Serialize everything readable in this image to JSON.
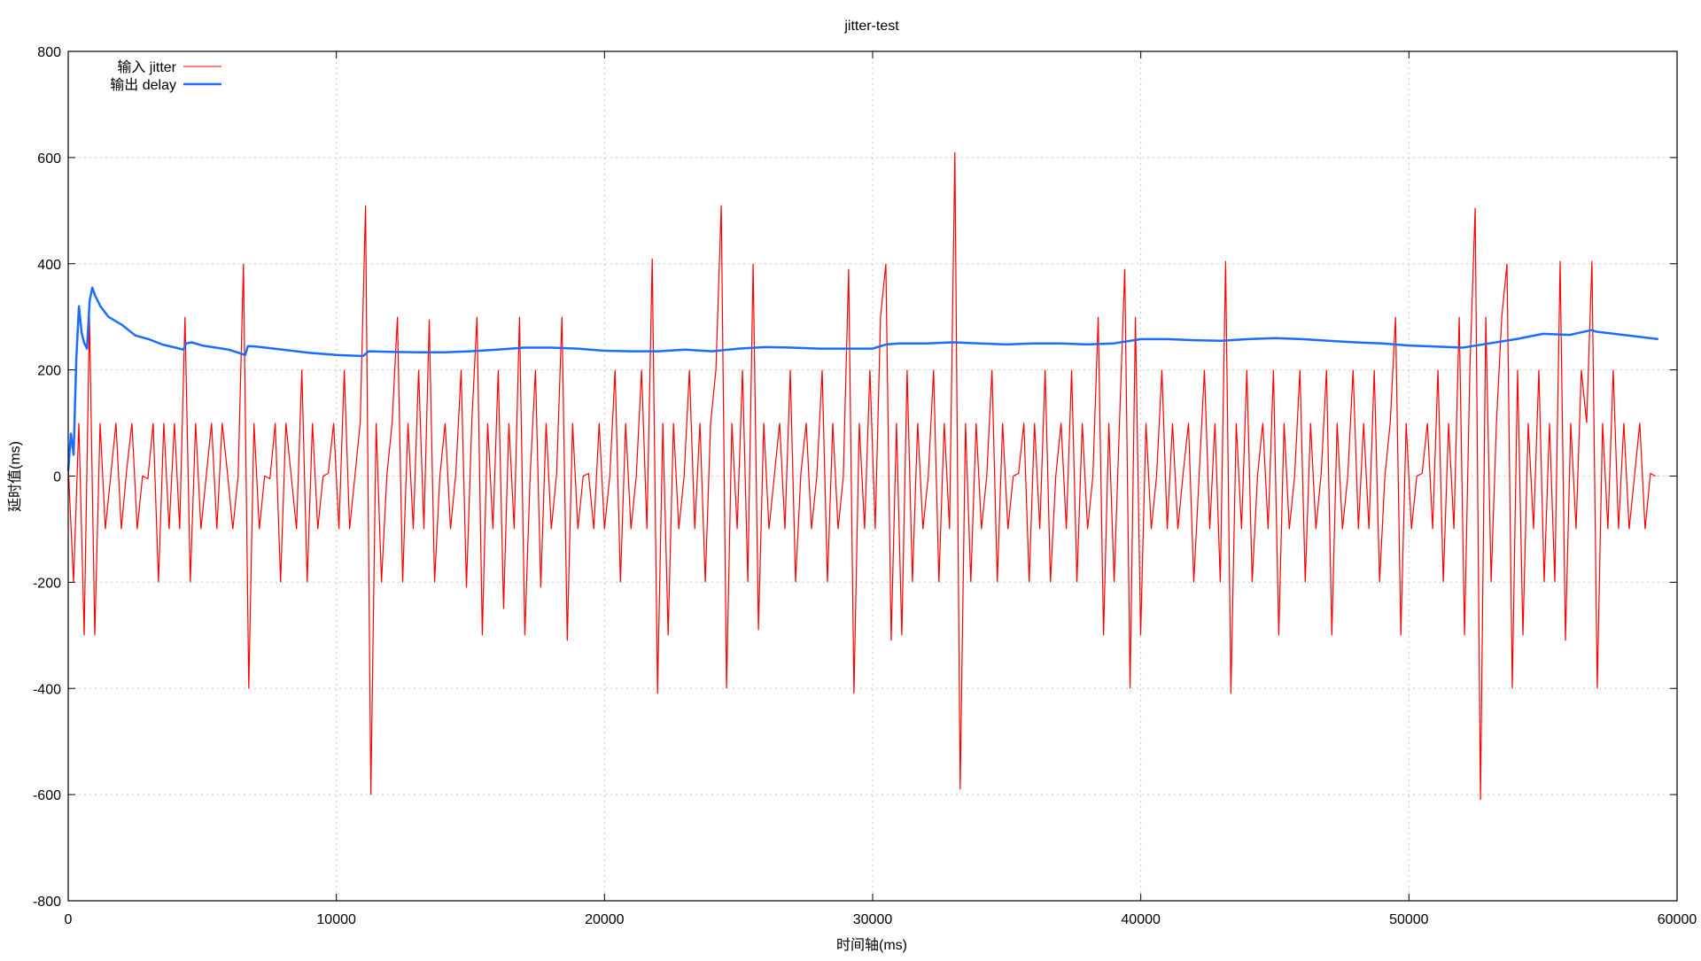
{
  "chart_data": {
    "type": "line",
    "title": "jitter-test",
    "xlabel": "时间轴(ms)",
    "ylabel": "延时值(ms)",
    "xlim": [
      0,
      60000
    ],
    "ylim": [
      -800,
      800
    ],
    "grid": true,
    "legend_position": "top-left",
    "x_ticks": [
      "0",
      "10000",
      "20000",
      "30000",
      "40000",
      "50000",
      "60000"
    ],
    "y_ticks": [
      "-800",
      "-600",
      "-400",
      "-200",
      "0",
      "200",
      "400",
      "600",
      "800"
    ],
    "series": [
      {
        "name": "输入 jitter",
        "color": "#ff0000",
        "x_step_ms": 198,
        "values": [
          20,
          -200,
          100,
          -300,
          300,
          -300,
          100,
          -100,
          0,
          100,
          -100,
          10,
          100,
          -100,
          0,
          -5,
          100,
          -200,
          100,
          -100,
          100,
          -100,
          300,
          -200,
          100,
          -100,
          0,
          100,
          -100,
          100,
          5,
          -100,
          0,
          400,
          -400,
          100,
          -100,
          0,
          -5,
          100,
          -200,
          100,
          0,
          -100,
          200,
          -200,
          100,
          -100,
          0,
          5,
          100,
          -100,
          200,
          -100,
          0,
          100,
          510,
          -600,
          100,
          -200,
          0,
          100,
          300,
          -200,
          100,
          -100,
          200,
          -100,
          295,
          -200,
          0,
          100,
          -100,
          5,
          200,
          -210,
          100,
          300,
          -300,
          100,
          -100,
          200,
          -250,
          100,
          -100,
          300,
          -300,
          0,
          200,
          -210,
          100,
          -100,
          5,
          300,
          -310,
          100,
          -100,
          0,
          5,
          -100,
          100,
          -100,
          0,
          200,
          -200,
          100,
          -100,
          0,
          200,
          -100,
          410,
          -410,
          100,
          -300,
          100,
          -100,
          0,
          200,
          -100,
          100,
          -200,
          100,
          200,
          510,
          -400,
          100,
          -100,
          200,
          -200,
          400,
          -290,
          100,
          -100,
          0,
          100,
          -100,
          200,
          -200,
          5,
          100,
          -100,
          0,
          200,
          -200,
          100,
          -100,
          0,
          390,
          -410,
          100,
          -100,
          200,
          -100,
          300,
          400,
          -310,
          100,
          -300,
          200,
          -200,
          100,
          -100,
          0,
          200,
          -200,
          100,
          -100,
          610,
          -590,
          100,
          -200,
          100,
          -100,
          0,
          200,
          -200,
          100,
          -100,
          0,
          5,
          100,
          -200,
          100,
          -100,
          200,
          -200,
          0,
          100,
          -100,
          200,
          -200,
          100,
          -100,
          0,
          300,
          -300,
          100,
          -200,
          100,
          390,
          -400,
          300,
          -300,
          100,
          -100,
          0,
          200,
          -100,
          100,
          -100,
          5,
          100,
          -200,
          0,
          200,
          -100,
          100,
          -200,
          405,
          -410,
          100,
          -100,
          200,
          -200,
          0,
          100,
          -100,
          200,
          -300,
          100,
          -100,
          0,
          200,
          -200,
          100,
          -100,
          5,
          200,
          -300,
          100,
          -100,
          0,
          200,
          -100,
          100,
          -100,
          200,
          -200,
          0,
          100,
          300,
          -300,
          100,
          -100,
          0,
          5,
          100,
          -100,
          200,
          -200,
          100,
          -100,
          300,
          -300,
          200,
          505,
          -610,
          300,
          -200,
          100,
          300,
          400,
          -400,
          200,
          -300,
          100,
          -100,
          200,
          -200,
          100,
          -200,
          405,
          -310,
          100,
          -100,
          200,
          100,
          405,
          -400,
          100,
          -100,
          200,
          -100,
          100,
          -100,
          0,
          100,
          -100,
          5,
          0
        ]
      },
      {
        "name": "输出 delay",
        "color": "#1a6dff",
        "x": [
          0,
          100,
          200,
          300,
          400,
          500,
          600,
          700,
          800,
          900,
          1000,
          1200,
          1500,
          2000,
          2500,
          3000,
          3500,
          4000,
          4300,
          4400,
          4600,
          5000,
          6000,
          6600,
          6700,
          7000,
          8000,
          9000,
          10000,
          11000,
          11200,
          12000,
          13000,
          14000,
          15000,
          16000,
          17000,
          18000,
          19000,
          20000,
          21000,
          22000,
          23000,
          24000,
          25000,
          26000,
          27000,
          28000,
          29000,
          30000,
          30500,
          31000,
          32000,
          33000,
          34000,
          35000,
          36000,
          37000,
          38000,
          39000,
          40000,
          41000,
          42000,
          43000,
          44000,
          45000,
          46000,
          47000,
          48000,
          49000,
          50000,
          51000,
          52000,
          53000,
          54000,
          55000,
          56000,
          56800,
          57000,
          58000,
          59300
        ],
        "values": [
          10,
          80,
          40,
          220,
          320,
          270,
          250,
          240,
          330,
          355,
          340,
          320,
          300,
          285,
          265,
          258,
          248,
          242,
          238,
          250,
          252,
          246,
          238,
          228,
          245,
          244,
          238,
          232,
          228,
          226,
          235,
          234,
          233,
          233,
          235,
          238,
          242,
          242,
          240,
          236,
          235,
          235,
          238,
          235,
          240,
          243,
          242,
          240,
          240,
          240,
          248,
          250,
          250,
          252,
          250,
          248,
          250,
          250,
          248,
          250,
          258,
          258,
          256,
          255,
          258,
          260,
          258,
          255,
          252,
          250,
          246,
          244,
          242,
          250,
          258,
          268,
          266,
          275,
          272,
          266,
          258
        ]
      }
    ]
  }
}
